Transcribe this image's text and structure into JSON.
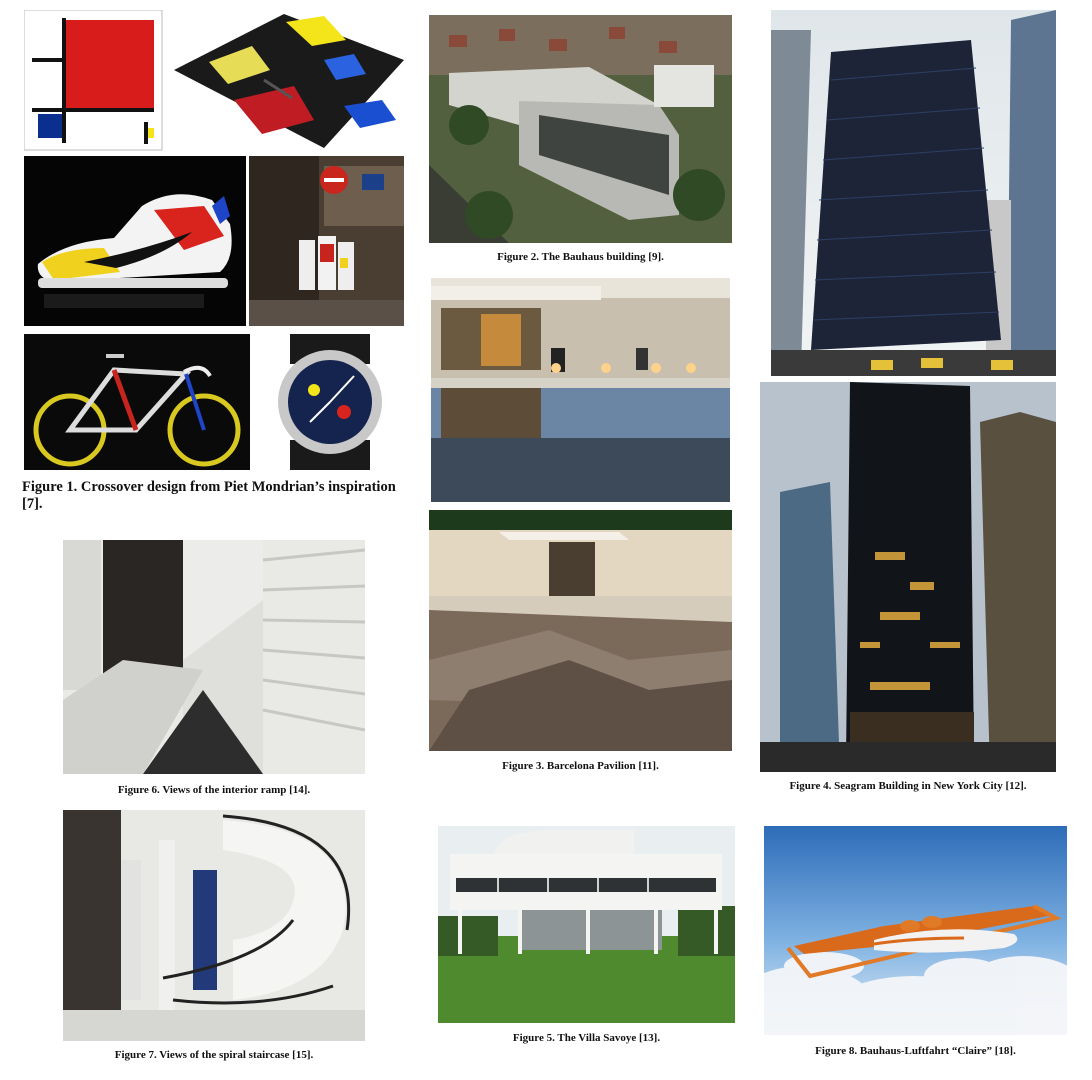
{
  "captions": {
    "fig1": "Figure 1. Crossover design from Piet Mondrian’s inspiration [7].",
    "fig2": "Figure 2. The Bauhaus building [9].",
    "fig3": "Figure 3. Barcelona Pavilion [11].",
    "fig4": "Figure 4. Seagram Building in New York City [12].",
    "fig5": "Figure 5. The Villa Savoye [13].",
    "fig6": "Figure 6. Views of the interior ramp [14].",
    "fig7": "Figure 7. Views of the spiral staircase [15].",
    "fig8": "Figure 8. Bauhaus-Luftfahrt “Claire” [18]."
  },
  "colors": {
    "mondrian_red": "#d81c1c",
    "mondrian_blue": "#0a2f8f",
    "mondrian_yellow": "#f4e51a",
    "sky_blue": "#4a86c8"
  }
}
